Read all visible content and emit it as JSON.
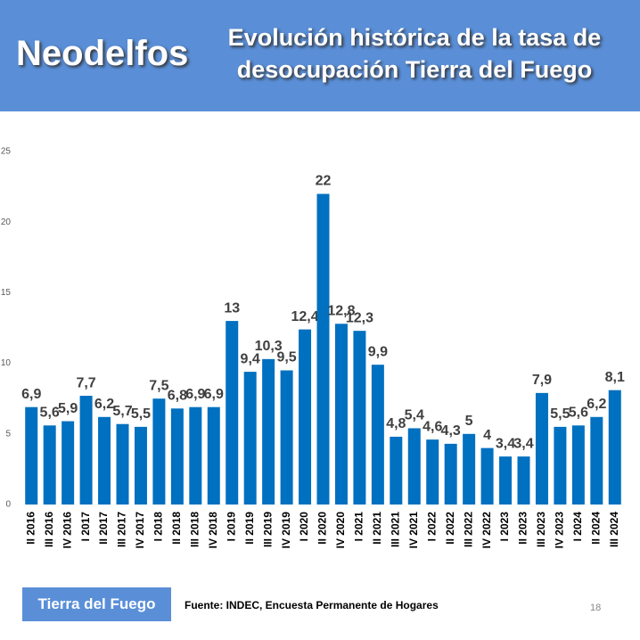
{
  "header": {
    "brand": "Neodelfos",
    "title": "Evolución histórica de la tasa de desocupación Tierra del Fuego"
  },
  "chart_data": {
    "type": "bar",
    "categories": [
      "II 2016",
      "III 2016",
      "IV 2016",
      "I 2017",
      "II 2017",
      "III 2017",
      "IV 2017",
      "I 2018",
      "II 2018",
      "III 2018",
      "IV 2018",
      "I 2019",
      "II 2019",
      "III 2019",
      "IV 2019",
      "I 2020",
      "II 2020",
      "IV 2020",
      "I 2021",
      "II 2021",
      "III 2021",
      "IV 2021",
      "I 2022",
      "II 2022",
      "III 2022",
      "IV 2022",
      "I 2023",
      "II 2023",
      "III 2023",
      "IV 2023",
      "I 2024",
      "II 2024",
      "III 2024"
    ],
    "values": [
      6.9,
      5.6,
      5.9,
      7.7,
      6.2,
      5.7,
      5.5,
      7.5,
      6.8,
      6.9,
      6.9,
      13,
      9.4,
      10.3,
      9.5,
      12.4,
      22,
      12.8,
      12.3,
      9.9,
      4.8,
      5.4,
      4.6,
      4.3,
      5,
      4,
      3.4,
      3.4,
      7.9,
      5.5,
      5.6,
      6.2,
      8.1
    ],
    "value_labels": [
      "6,9",
      "5,6",
      "5,9",
      "7,7",
      "6,2",
      "5,7",
      "5,5",
      "7,5",
      "6,8",
      "6,9",
      "6,9",
      "13",
      "9,4",
      "10,3",
      "9,5",
      "12,4",
      "22",
      "12,8",
      "12,3",
      "9,9",
      "4,8",
      "5,4",
      "4,6",
      "4,3",
      "5",
      "4",
      "3,4",
      "3,4",
      "7,9",
      "5,5",
      "5,6",
      "6,2",
      "8,1"
    ],
    "color": "#0070c0",
    "ylim": [
      0,
      25
    ],
    "yticks": [
      0,
      5,
      10,
      15,
      20,
      25
    ],
    "grid": false
  },
  "footer": {
    "tag": "Tierra del Fuego",
    "source": "Fuente: INDEC, Encuesta Permanente de Hogares",
    "page": "18"
  }
}
